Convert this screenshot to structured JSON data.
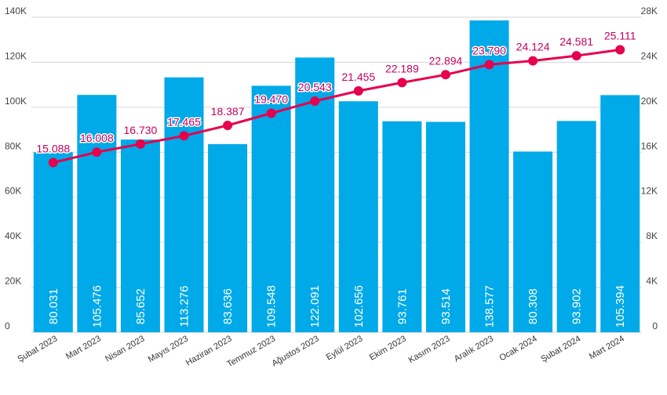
{
  "chart_data": {
    "type": "bar",
    "title": "",
    "xlabel": "",
    "ylabel": "",
    "categories": [
      "Şubat 2023",
      "Mart 2023",
      "Nisan 2023",
      "Mayıs 2023",
      "Haziran 2023",
      "Temmuz 2023",
      "Ağustos 2023",
      "Eylül 2023",
      "Ekim 2023",
      "Kasım 2023",
      "Aralık 2023",
      "Ocak 2024",
      "Şubat 2024",
      "Mart 2024"
    ],
    "series": [
      {
        "type": "bar",
        "axis": "left",
        "values": [
          80031,
          105476,
          85652,
          113276,
          83636,
          109548,
          122091,
          102656,
          93761,
          93514,
          138577,
          80308,
          93902,
          105394
        ],
        "labels": [
          "80.031",
          "105.476",
          "85.652",
          "113.276",
          "83.636",
          "109.548",
          "122.091",
          "102.656",
          "93.761",
          "93.514",
          "138.577",
          "80.308",
          "93.902",
          "105.394"
        ]
      },
      {
        "type": "line",
        "axis": "right",
        "values": [
          15088,
          16008,
          16730,
          17465,
          18387,
          19470,
          20543,
          21455,
          22189,
          22894,
          23790,
          24124,
          24581,
          25111
        ],
        "labels": [
          "15.088",
          "16.008",
          "16.730",
          "17.465",
          "18.387",
          "19.470",
          "20.543",
          "21.455",
          "22.189",
          "22.894",
          "23.790",
          "24.124",
          "24.581",
          "25.111"
        ]
      }
    ],
    "ylim": [
      0,
      140000
    ],
    "y2lim": [
      0,
      28000
    ],
    "yticks": [
      "0",
      "20K",
      "40K",
      "60K",
      "80K",
      "100K",
      "120K",
      "140K"
    ],
    "y2ticks": [
      "0",
      "4K",
      "8K",
      "12K",
      "16K",
      "20K",
      "24K",
      "28K"
    ],
    "grid": true,
    "colors": {
      "bar": "#00a9e8",
      "line": "#e6004d",
      "line_label": "#c2005e",
      "grid": "#d6d6d6"
    }
  }
}
